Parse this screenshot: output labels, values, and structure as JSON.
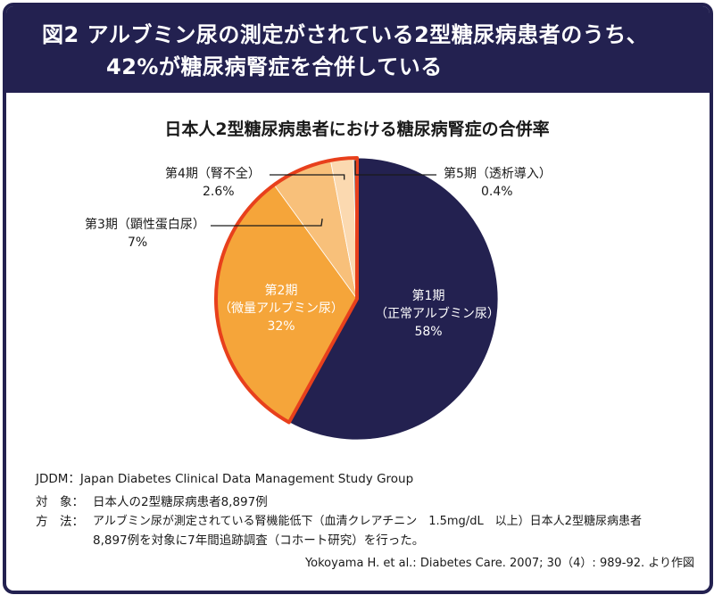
{
  "header": {
    "line1": "図2 アルブミン尿の測定がされている2型糖尿病患者のうち、",
    "line2": "42%が糖尿病腎症を合併している"
  },
  "chart_data": {
    "type": "pie",
    "title": "日本人2型糖尿病患者における糖尿病腎症の合併率",
    "slices": [
      {
        "stage": "第1期",
        "desc": "（正常アルブミン尿）",
        "value": 58,
        "label": "58%",
        "color": "#232150"
      },
      {
        "stage": "第2期",
        "desc": "（微量アルブミン尿）",
        "value": 32,
        "label": "32%",
        "color": "#f5a53a"
      },
      {
        "stage": "第3期",
        "desc": "（顕性蛋白尿）",
        "value": 7,
        "label": "7%",
        "color": "#f8c07a"
      },
      {
        "stage": "第4期",
        "desc": "（腎不全）",
        "value": 2.6,
        "label": "2.6%",
        "color": "#fbd9b0"
      },
      {
        "stage": "第5期",
        "desc": "（透析導入）",
        "value": 0.4,
        "label": "0.4%",
        "color": "#8a8a8a"
      }
    ],
    "highlight_color": "#e8401c",
    "highlight_group": "第2期〜第5期"
  },
  "footer": {
    "jddm": "JDDM：Japan Diabetes Clinical Data Management Study Group",
    "subject_label": "対　象：",
    "subject_text": "日本人の2型糖尿病患者8,897例",
    "method_label": "方　法：",
    "method_text1": "アルブミン尿が測定されている腎機能低下（血清クレアチニン　1.5mg/dL　以上）日本人2型糖尿病患者",
    "method_text2": "8,897例を対象に7年間追跡調査（コホート研究）を行った。",
    "source": "Yokoyama H. et al.: Diabetes Care. 2007; 30（4）: 989-92. より作図"
  }
}
